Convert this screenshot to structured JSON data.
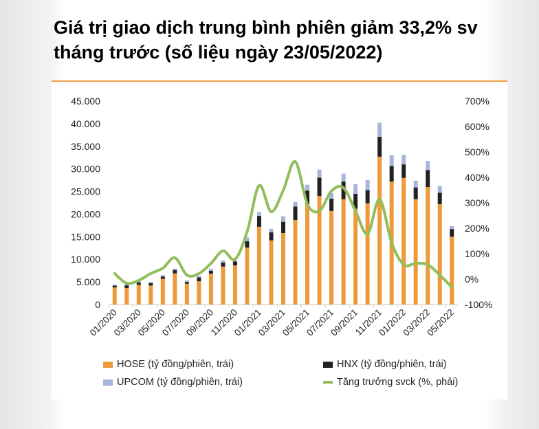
{
  "title": "Giá trị giao dịch trung bình phiên giảm 33,2% sv tháng trước (số liệu ngày  23/05/2022)",
  "chart_data": {
    "type": "bar",
    "categories": [
      "01/2020",
      "02/2020",
      "03/2020",
      "04/2020",
      "05/2020",
      "06/2020",
      "07/2020",
      "08/2020",
      "09/2020",
      "10/2020",
      "11/2020",
      "12/2020",
      "01/2021",
      "02/2021",
      "03/2021",
      "04/2021",
      "05/2021",
      "06/2021",
      "07/2021",
      "08/2021",
      "09/2021",
      "10/2021",
      "11/2021",
      "12/2021",
      "01/2022",
      "02/2022",
      "03/2022",
      "04/2022",
      "05/2022"
    ],
    "x_tick_labels": [
      "01/2020",
      "03/2020",
      "05/2020",
      "07/2020",
      "09/2020",
      "11/2020",
      "01/2021",
      "03/2021",
      "05/2021",
      "07/2021",
      "09/2021",
      "11/2021",
      "01/2022",
      "03/2022",
      "05/2022"
    ],
    "y_left": {
      "ticks": [
        "0",
        "5.000",
        "10.000",
        "15.000",
        "20.000",
        "25.000",
        "30.000",
        "35.000",
        "40.000",
        "45.000"
      ],
      "range": [
        0,
        45000
      ]
    },
    "y_right": {
      "ticks": [
        "-100%",
        "0%",
        "100%",
        "200%",
        "300%",
        "400%",
        "500%",
        "600%",
        "700%"
      ],
      "range": [
        -100,
        700
      ]
    },
    "series": [
      {
        "name": "HOSE (tỷ đồng/phiên, trái)",
        "type": "stacked-bar",
        "axis": "left",
        "color": "#ee9a3a",
        "values": [
          3800,
          3650,
          4350,
          4200,
          5700,
          6900,
          4600,
          5150,
          6850,
          8400,
          8650,
          12600,
          17200,
          14200,
          15800,
          18700,
          22200,
          24000,
          20700,
          23300,
          21200,
          22400,
          32700,
          27200,
          28000,
          23300,
          26000,
          22200,
          15000
        ]
      },
      {
        "name": "HNX (tỷ đồng/phiên, trái)",
        "type": "stacked-bar",
        "axis": "left",
        "color": "#222222",
        "values": [
          400,
          600,
          550,
          550,
          500,
          750,
          400,
          850,
          600,
          900,
          900,
          1400,
          2400,
          1800,
          2500,
          3000,
          3000,
          4050,
          2700,
          3900,
          3300,
          2900,
          4400,
          3450,
          3000,
          2600,
          3750,
          2550,
          1700
        ]
      },
      {
        "name": "UPCOM (tỷ đồng/phiên, trái)",
        "type": "stacked-bar",
        "axis": "left",
        "color": "#a9b4dc",
        "values": [
          200,
          250,
          200,
          250,
          350,
          300,
          350,
          350,
          500,
          450,
          150,
          850,
          850,
          750,
          1200,
          1000,
          1300,
          1800,
          1250,
          1750,
          2100,
          2250,
          3100,
          2400,
          2100,
          1500,
          2000,
          1450,
          650
        ]
      },
      {
        "name": "Tăng trưởng svck (%, phải)",
        "type": "line",
        "axis": "right",
        "color": "#93bd5a",
        "values": [
          22,
          -16,
          -5,
          22,
          43,
          84,
          16,
          22,
          62,
          111,
          78,
          186,
          368,
          265,
          349,
          462,
          295,
          268,
          346,
          359,
          268,
          178,
          314,
          143,
          57,
          62,
          57,
          16,
          -32
        ]
      }
    ]
  }
}
